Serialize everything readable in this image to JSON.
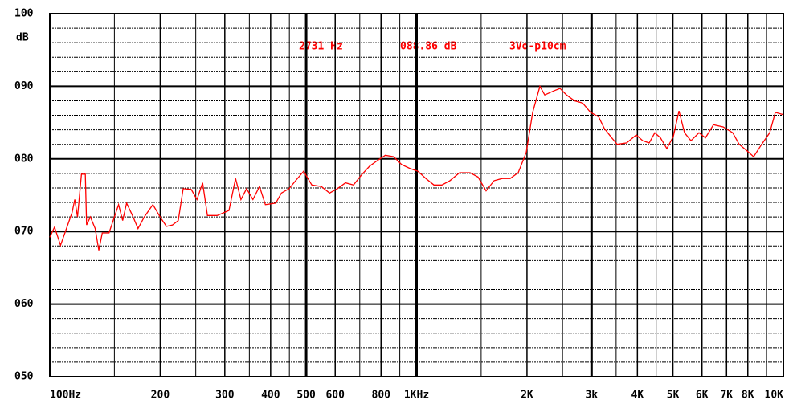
{
  "chart_data": {
    "type": "line",
    "y_unit_label": "dB",
    "annotations": [
      "2731 Hz",
      "088.86 dB",
      "3Vo-p10cm"
    ],
    "log_x": true,
    "grid": true,
    "color": "#ff0000",
    "xlim": [
      100,
      10000
    ],
    "ylim": [
      50,
      100
    ],
    "xticks": [
      {
        "value": 100,
        "label": "100Hz"
      },
      200,
      300,
      400,
      500,
      600,
      800,
      {
        "value": 1000,
        "label": "1KHz"
      },
      {
        "value": 2000,
        "label": "2K"
      },
      {
        "value": 3000,
        "label": "3k"
      },
      {
        "value": 4000,
        "label": "4K"
      },
      {
        "value": 5000,
        "label": "5K"
      },
      {
        "value": 6000,
        "label": "6K"
      },
      {
        "value": 7000,
        "label": "7K"
      },
      {
        "value": 8000,
        "label": "8K"
      },
      {
        "value": 10000,
        "label": "10K"
      }
    ],
    "x_minor_grid": [
      150,
      250,
      350,
      450,
      700,
      900,
      1500,
      2500,
      3500,
      4500,
      9000
    ],
    "x_bold_grid": [
      500,
      1000,
      3000
    ],
    "yticks": [
      {
        "value": 50,
        "label": "050"
      },
      {
        "value": 60,
        "label": "060"
      },
      {
        "value": 70,
        "label": "070"
      },
      {
        "value": 80,
        "label": "080"
      },
      {
        "value": 90,
        "label": "090"
      },
      100
    ],
    "y_minor_step": 2,
    "x": [
      100,
      103,
      107,
      111,
      115,
      117,
      119,
      122,
      125,
      126,
      129,
      133,
      136,
      139,
      145,
      150,
      154,
      158,
      162,
      168,
      174,
      181,
      191,
      201,
      208,
      216,
      224,
      231,
      243,
      252,
      261,
      269,
      286,
      308,
      321,
      332,
      344,
      358,
      373,
      387,
      413,
      428,
      449,
      468,
      492,
      518,
      550,
      579,
      608,
      640,
      673,
      708,
      745,
      783,
      822,
      866,
      911,
      958,
      1008,
      1060,
      1115,
      1172,
      1233,
      1310,
      1399,
      1471,
      1547,
      1627,
      1712,
      1800,
      1893,
      1991,
      2073,
      2169,
      2236,
      2375,
      2460,
      2563,
      2695,
      2835,
      2981,
      3135,
      3248,
      3381,
      3522,
      3740,
      3972,
      4137,
      4308,
      4461,
      4622,
      4812,
      5012,
      5192,
      5378,
      5599,
      5888,
      6132,
      6448,
      6851,
      7278,
      7577,
      7967,
      8298,
      8727,
      9179,
      9508,
      10000
    ],
    "values": [
      69.2,
      70.6,
      68.1,
      70.4,
      72.6,
      74.4,
      72,
      77.9,
      77.9,
      70.9,
      72,
      70.4,
      67.4,
      69.8,
      69.8,
      72,
      73.7,
      71.5,
      73.9,
      72.2,
      70.4,
      72,
      73.7,
      71.8,
      70.7,
      70.9,
      71.5,
      75.9,
      75.8,
      74.4,
      76.7,
      72.2,
      72.2,
      72.9,
      77.3,
      74.4,
      75.9,
      74.4,
      76.2,
      73.7,
      73.9,
      75.3,
      75.9,
      77,
      78.3,
      76.4,
      76.2,
      75.3,
      75.9,
      76.7,
      76.4,
      77.8,
      79,
      79.8,
      80.5,
      80.3,
      79.2,
      78.7,
      78.3,
      77.3,
      76.4,
      76.4,
      77,
      78.1,
      78.1,
      77.5,
      75.6,
      77,
      77.3,
      77.3,
      78.1,
      80.9,
      86.4,
      90,
      88.8,
      89.4,
      89.7,
      88.8,
      88,
      87.7,
      86.4,
      85.8,
      84.2,
      83.1,
      82,
      82.2,
      83.3,
      82.5,
      82.2,
      83.6,
      82.9,
      81.4,
      83.1,
      86.6,
      83.6,
      82.5,
      83.6,
      82.9,
      84.7,
      84.4,
      83.6,
      82,
      81.1,
      80.3,
      82,
      83.6,
      86.4,
      86.1
    ]
  }
}
